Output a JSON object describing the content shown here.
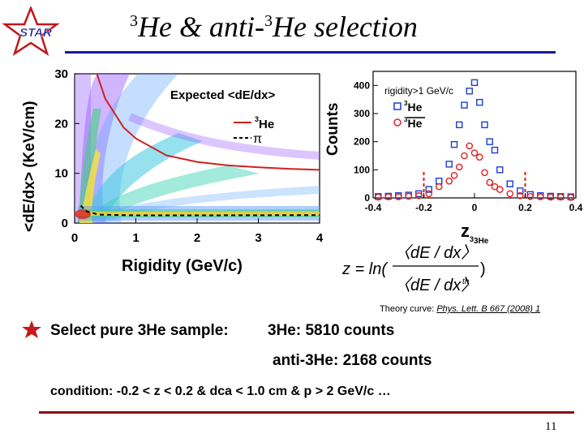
{
  "slide": {
    "logo_text": "STAR",
    "title_main": "He & anti-",
    "title_sup1": "3",
    "title_sup2": "3",
    "title_tail": "He selection",
    "theory_prefix": "Theory curve: ",
    "theory_ref": "Phys. Lett. B 667 (2008) 1",
    "bullet_label": "Select pure 3He sample:",
    "count_he3": "3He: 5810 counts",
    "count_antihe3": "anti-3He: 2168 counts",
    "condition": "condition: -0.2 < z < 0.2  &  dca < 1.0 cm  &  p > 2 GeV/c …",
    "page_number": "11",
    "formula": {
      "lhs": "z = ln(",
      "num": "〈dE / dx〉",
      "den": "〈dE / dx〉",
      "den_sub": "th",
      "rhs": ")"
    }
  },
  "colors": {
    "title_rule": "#1a1a9c",
    "bottom_rule": "#8b0a1a",
    "he3": "#1a3fd0",
    "antihe3": "#e02020",
    "theory": "#d02020"
  },
  "chart_data": [
    {
      "type": "heatmap",
      "xlabel": "Rigidity (GeV/c)",
      "ylabel": "<dE/dx> (KeV/cm)",
      "xlim": [
        0,
        4
      ],
      "ylim": [
        0,
        30
      ],
      "xticks": [
        "0",
        "1",
        "2",
        "3",
        "4"
      ],
      "yticks": [
        "0",
        "10",
        "20",
        "30"
      ],
      "legend_title": "Expected <dE/dx>",
      "legend": [
        "3He",
        "π"
      ],
      "theory_3he": {
        "x": [
          0.35,
          0.5,
          0.8,
          1.0,
          1.5,
          2.0,
          2.5,
          3.0,
          3.5,
          4.0
        ],
        "y": [
          30.5,
          25,
          19.2,
          17,
          13.6,
          12.3,
          11.6,
          11.2,
          10.9,
          10.7
        ]
      },
      "theory_pi": {
        "x": [
          0.1,
          0.2,
          0.4,
          1.0,
          2.0,
          4.0
        ],
        "y": [
          3.5,
          2.3,
          1.7,
          1.55,
          1.55,
          1.6
        ]
      }
    },
    {
      "type": "scatter",
      "xlabel": "z",
      "xlabel_sub": "3He",
      "ylabel": "Counts",
      "xlim": [
        -0.4,
        0.4
      ],
      "ylim": [
        0,
        450
      ],
      "xticks": [
        "-0.4",
        "-0.2",
        "0",
        "0.2",
        "0.4"
      ],
      "yticks": [
        "0",
        "100",
        "200",
        "300",
        "400"
      ],
      "annotation": "rigidity>1 GeV/c",
      "legend": [
        "3He",
        "3He"
      ],
      "cuts": [
        -0.2,
        0.2
      ],
      "series": [
        {
          "name": "3He",
          "x": [
            -0.38,
            -0.34,
            -0.3,
            -0.26,
            -0.22,
            -0.18,
            -0.14,
            -0.1,
            -0.08,
            -0.06,
            -0.04,
            -0.02,
            0,
            0.02,
            0.04,
            0.06,
            0.08,
            0.1,
            0.14,
            0.18,
            0.22,
            0.26,
            0.3,
            0.34,
            0.38
          ],
          "values": [
            5,
            6,
            8,
            10,
            15,
            30,
            60,
            120,
            190,
            260,
            330,
            380,
            410,
            340,
            260,
            200,
            170,
            100,
            50,
            25,
            12,
            8,
            6,
            5,
            4
          ]
        },
        {
          "name": "3He",
          "x": [
            -0.38,
            -0.34,
            -0.3,
            -0.26,
            -0.22,
            -0.18,
            -0.14,
            -0.1,
            -0.08,
            -0.06,
            -0.04,
            -0.02,
            0,
            0.02,
            0.04,
            0.06,
            0.08,
            0.1,
            0.14,
            0.18,
            0.22,
            0.26,
            0.3,
            0.34,
            0.38
          ],
          "values": [
            3,
            4,
            4,
            6,
            8,
            15,
            40,
            60,
            80,
            110,
            150,
            185,
            160,
            145,
            90,
            55,
            40,
            30,
            15,
            8,
            5,
            4,
            3,
            3,
            2
          ]
        }
      ]
    }
  ]
}
